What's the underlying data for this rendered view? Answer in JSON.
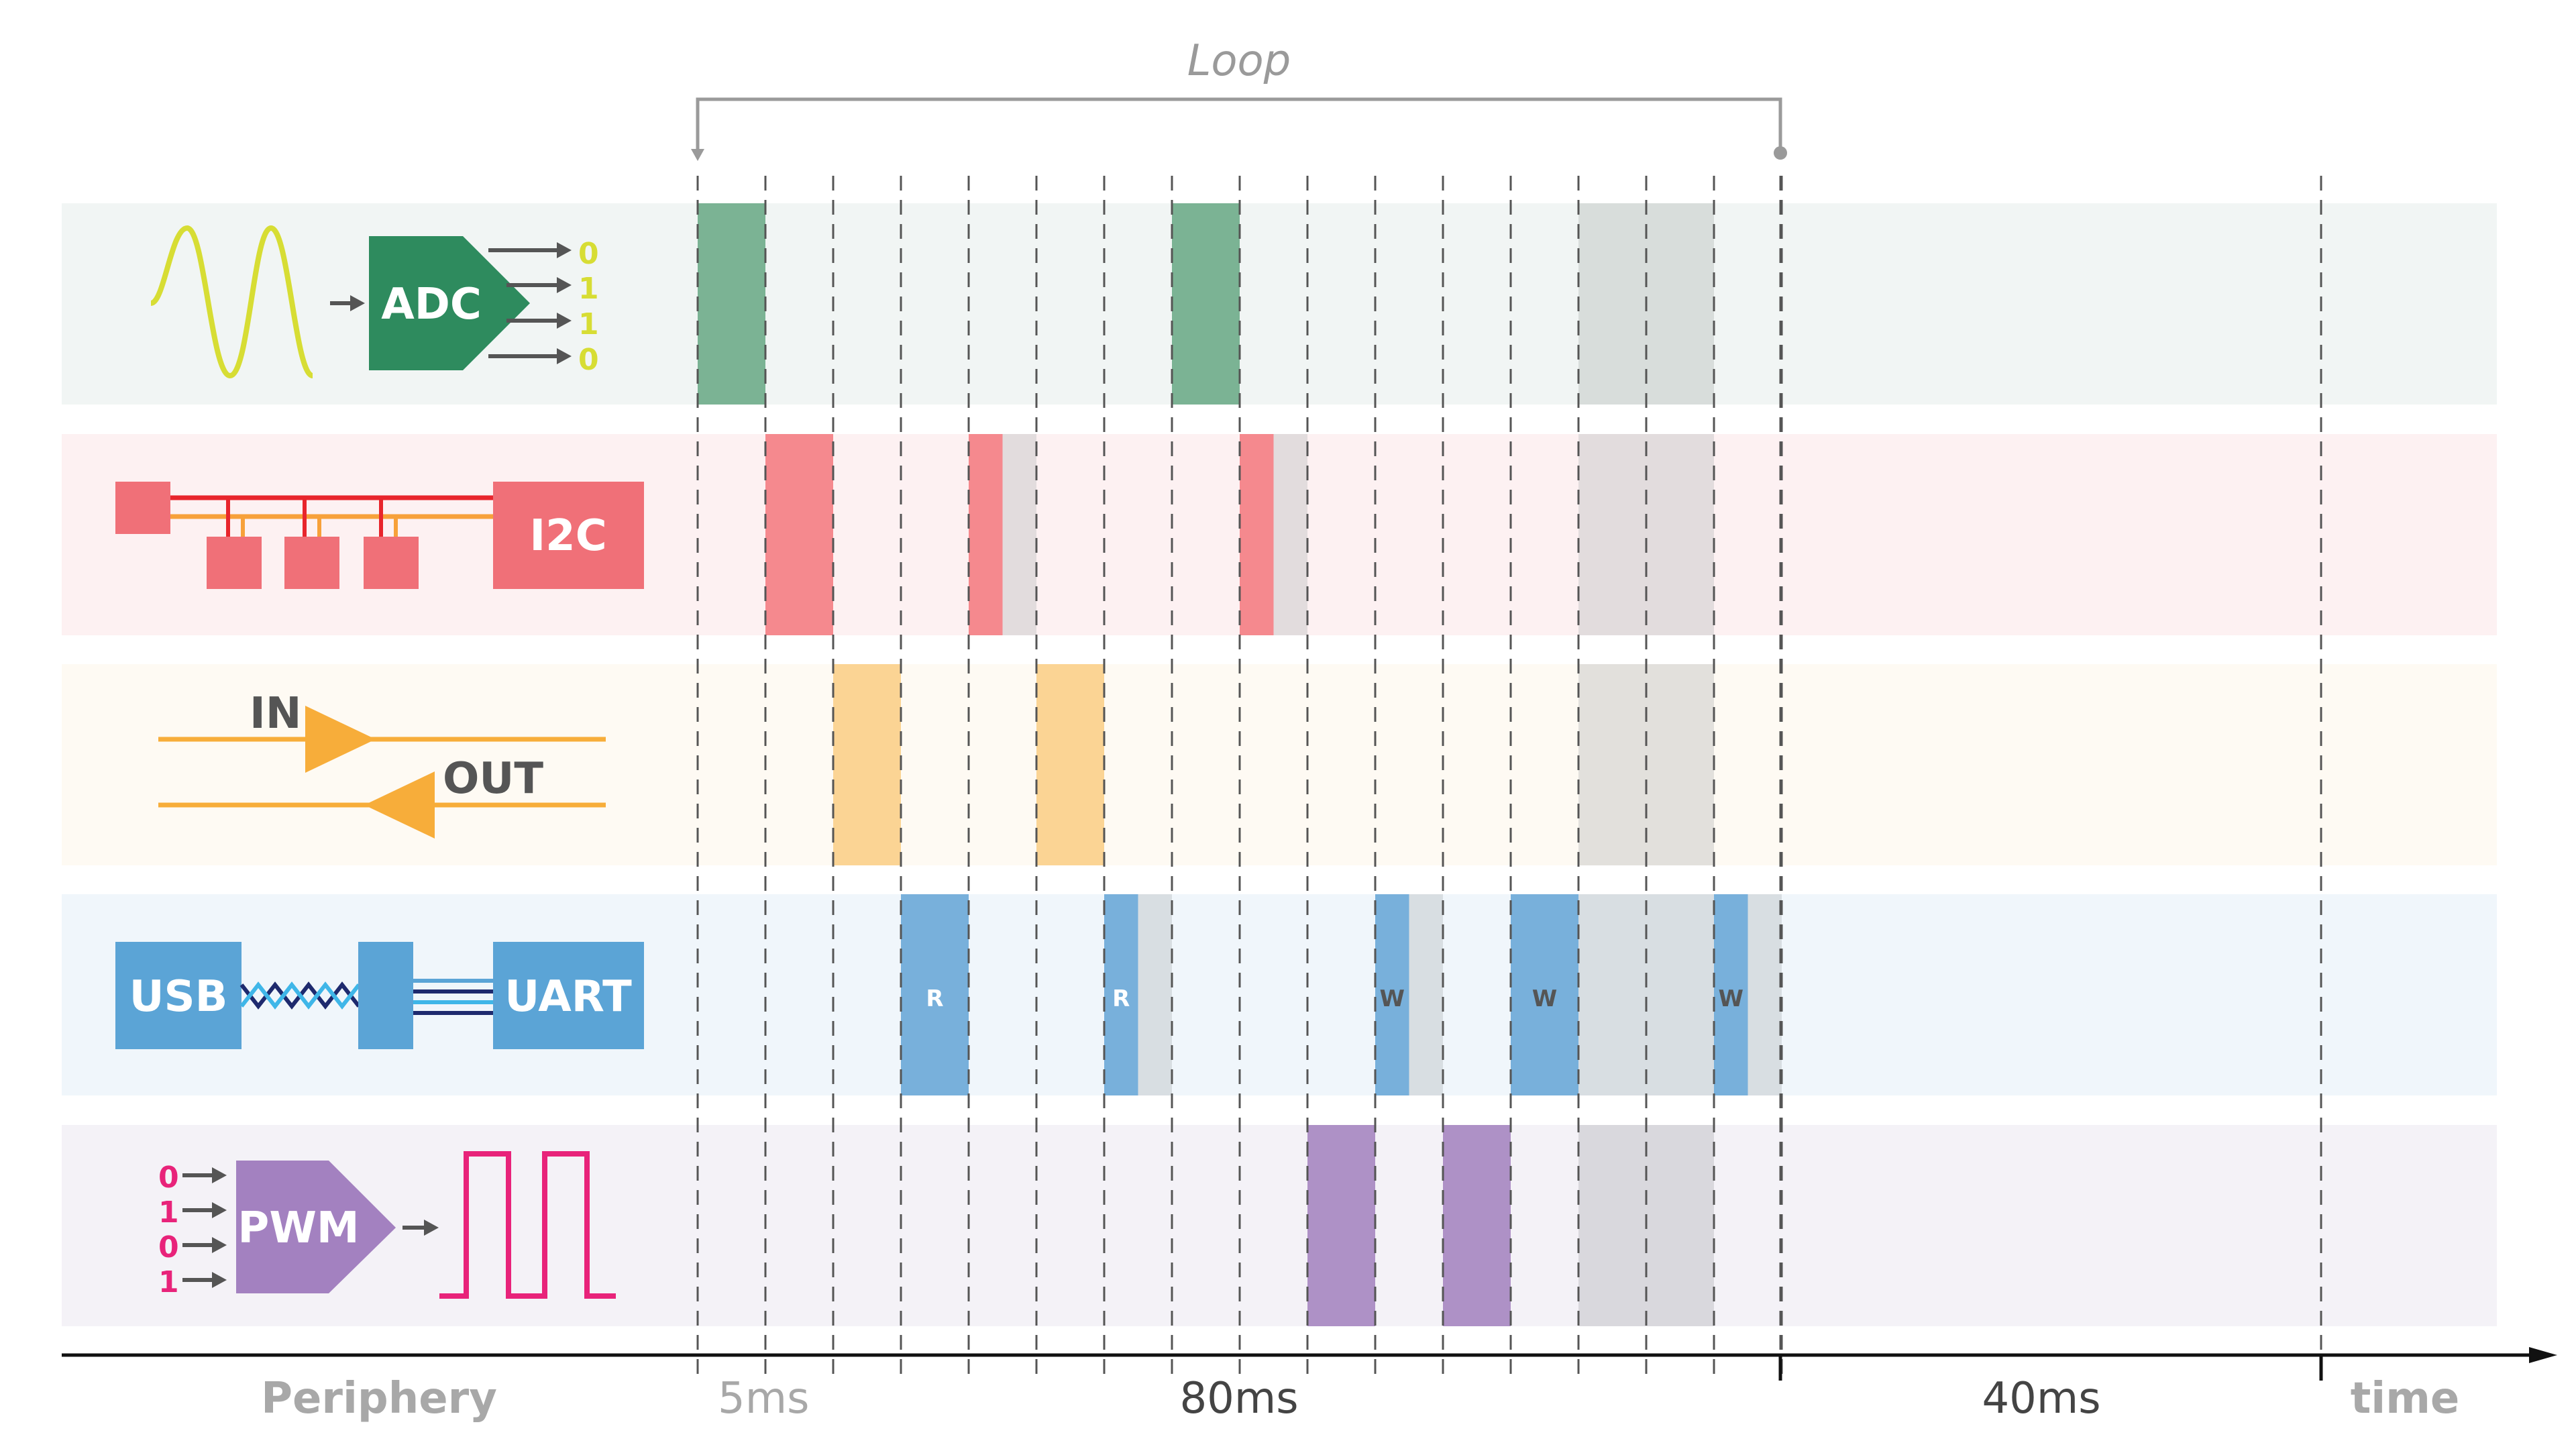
{
  "loop_label": "Loop",
  "peripherals": [
    {
      "id": "adc",
      "icon_text": "ADC",
      "bits": [
        "0",
        "1",
        "1",
        "0"
      ],
      "color": "#2e8b5e",
      "band": "#f1f5f4",
      "block": "#7bb394",
      "half_gray": "#d8dddb"
    },
    {
      "id": "i2c",
      "icon_text": "I2C",
      "color": "#f07078",
      "band": "#fdf1f2",
      "block": "#f5898e",
      "half_gray": "#e2dcdd"
    },
    {
      "id": "gpio",
      "in_text": "IN",
      "out_text": "OUT",
      "color": "#f7ad3a",
      "band": "#fefaf3",
      "block": "#fbd494",
      "half_gray": "#e2e0dc"
    },
    {
      "id": "usb-uart",
      "usb_text": "USB",
      "uart_text": "UART",
      "color": "#5ba4d6",
      "band": "#f0f6fb",
      "block": "#78b0db",
      "half_gray": "#d8dee2"
    },
    {
      "id": "pwm",
      "icon_text": "PWM",
      "bits": [
        "0",
        "1",
        "0",
        "1"
      ],
      "color": "#a381c0",
      "band": "#f4f2f7",
      "block": "#ae91c6",
      "half_gray": "#d9d8dd"
    }
  ],
  "usb_events": [
    "R",
    "R",
    "W",
    "W",
    "W"
  ],
  "axis": {
    "periphery_label": "Periphery",
    "labels": [
      "5ms",
      "80ms",
      "40ms"
    ],
    "time_label": "time"
  },
  "colors": {
    "gray_overlay": "#d2d5d8",
    "guide": "#555555",
    "text_gray": "#a8a8a8",
    "text_dark": "#444444",
    "axis": "#111111",
    "bit_yellow": "#d7dd34",
    "bit_pink": "#e8237a",
    "sine": "#d7dd34",
    "pwm_wave": "#e8237a"
  }
}
